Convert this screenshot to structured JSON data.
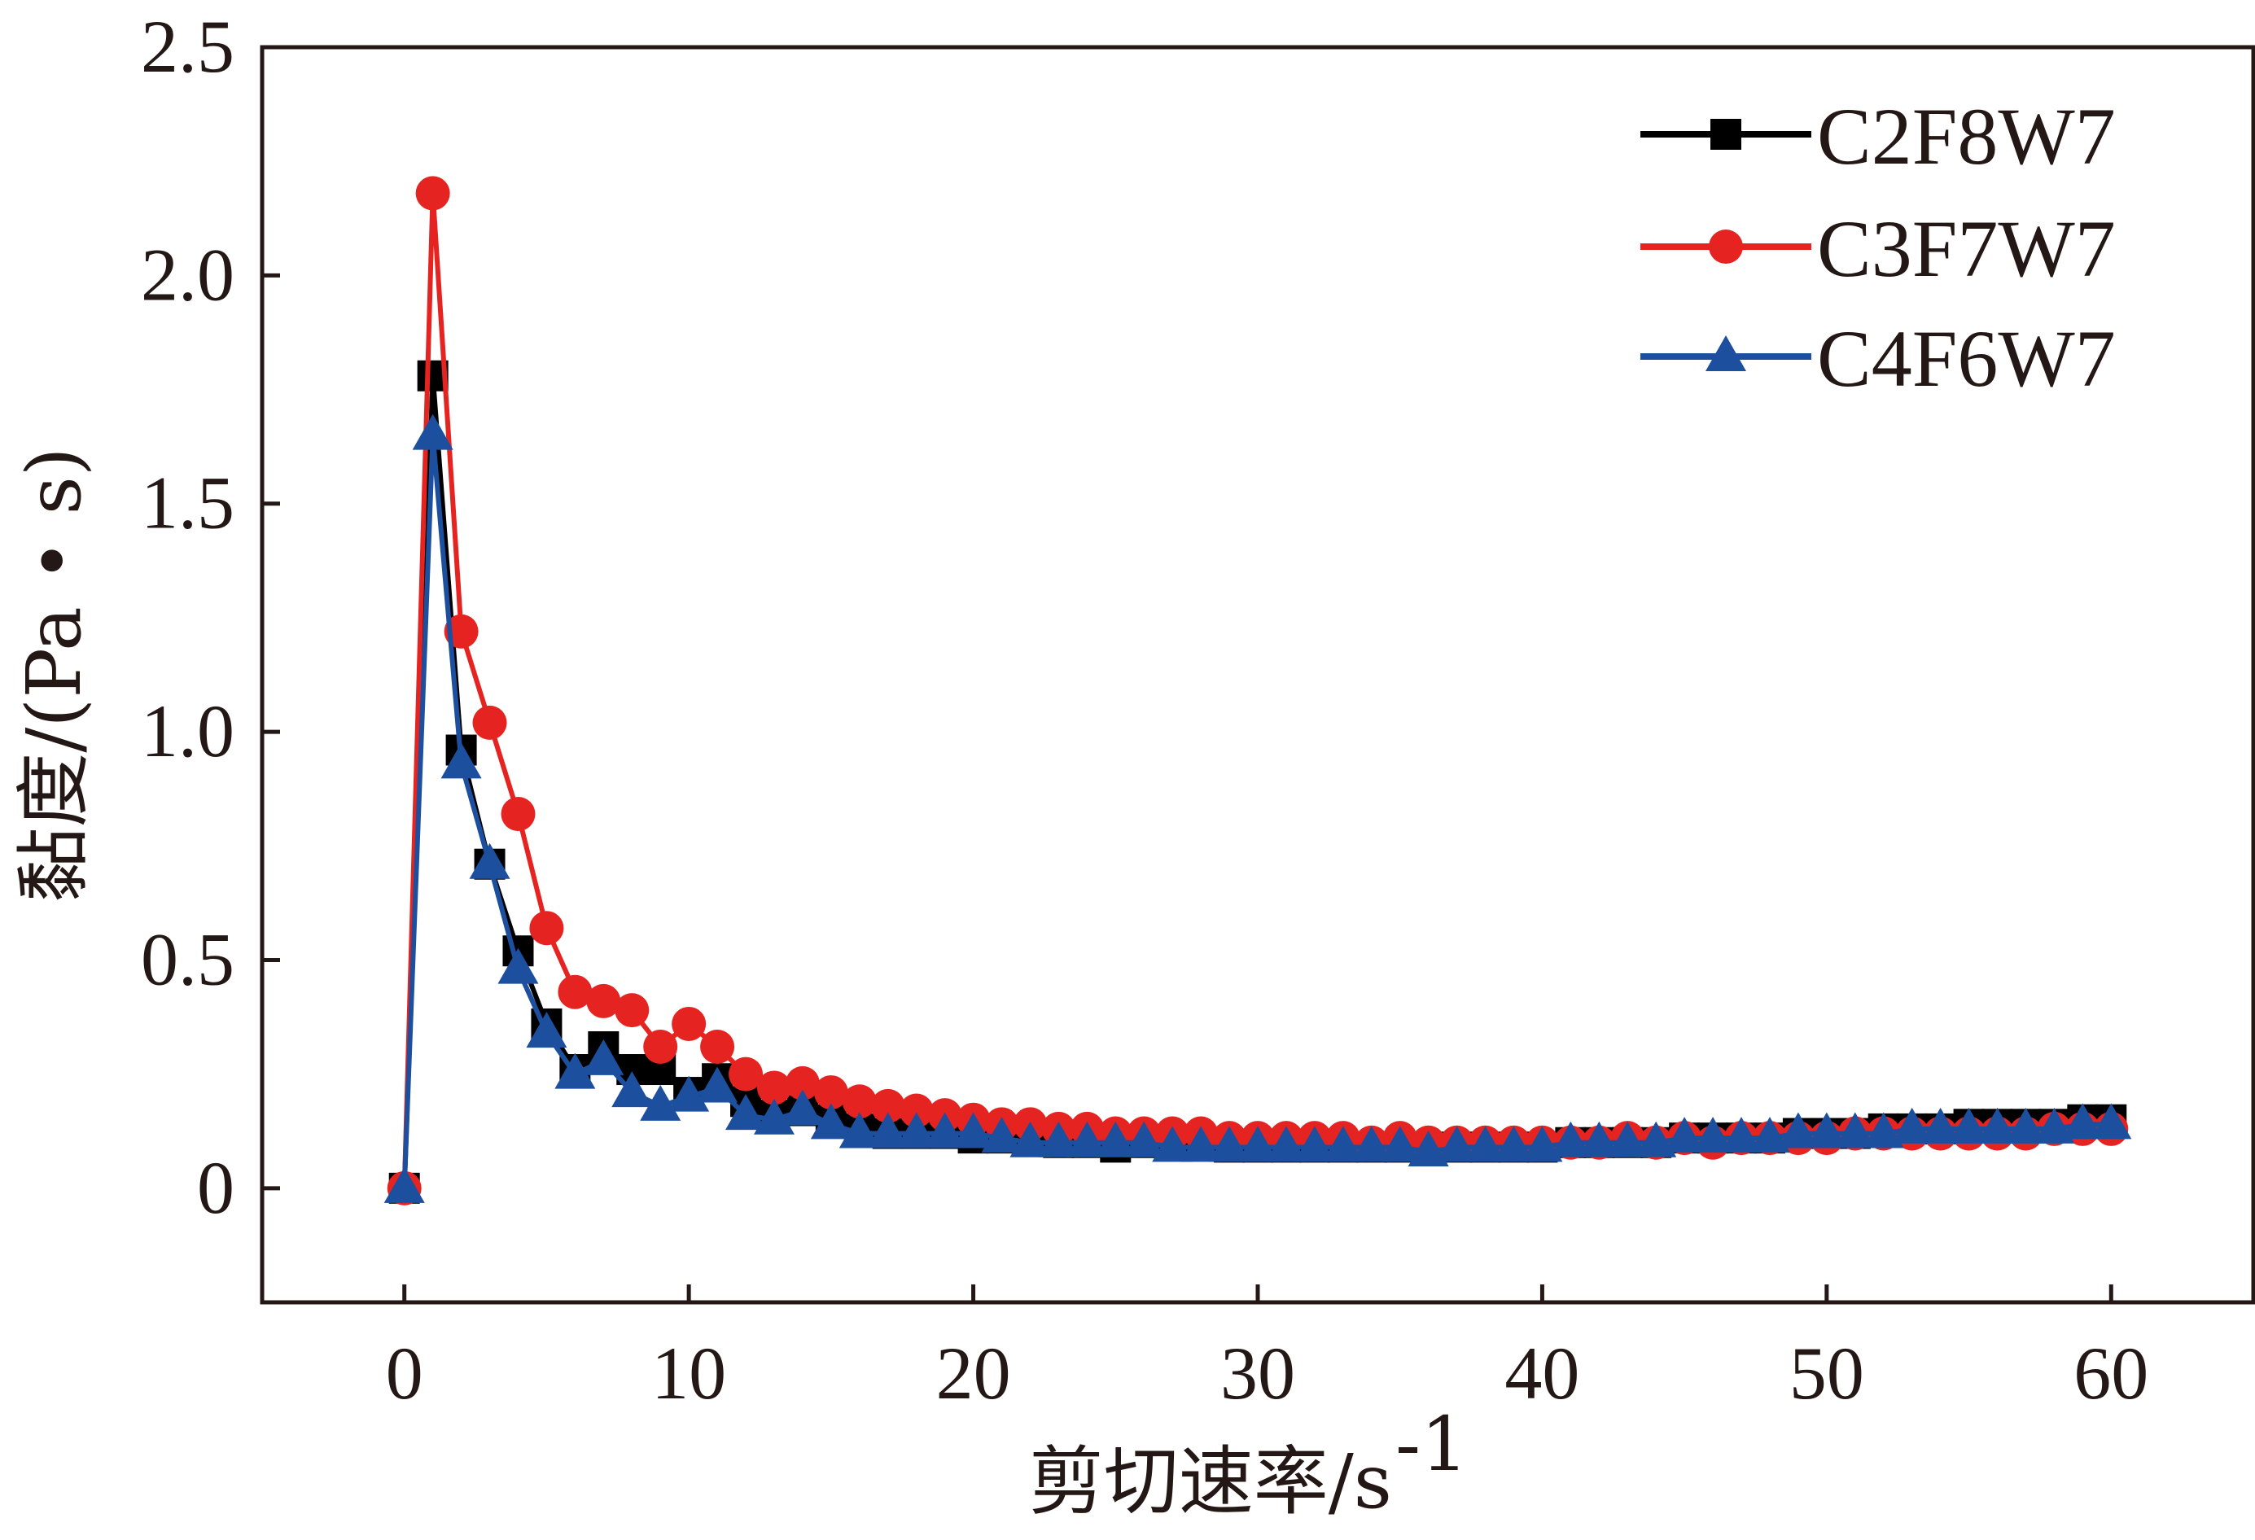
{
  "chart_data": {
    "type": "line",
    "xlabel": "剪切速率/s",
    "xlabel_sup": "-1",
    "ylabel": "黏度/(Pa • s)",
    "xlim": [
      -5,
      65
    ],
    "ylim": [
      -0.25,
      2.5
    ],
    "xticks": [
      0,
      10,
      20,
      30,
      40,
      50,
      60
    ],
    "xtick_labels": [
      "0",
      "10",
      "20",
      "30",
      "40",
      "50",
      "60"
    ],
    "yticks": [
      0,
      0.5,
      1.0,
      1.5,
      2.0,
      2.5
    ],
    "ytick_labels": [
      "0",
      "0.5",
      "1.0",
      "1.5",
      "2.0",
      "2.5"
    ],
    "grid": false,
    "legend_position": "top-right",
    "x": [
      0,
      1,
      2,
      3,
      4,
      5,
      6,
      7,
      8,
      9,
      10,
      11,
      12,
      13,
      14,
      15,
      16,
      17,
      18,
      19,
      20,
      21,
      22,
      23,
      24,
      25,
      26,
      27,
      28,
      29,
      30,
      31,
      32,
      33,
      34,
      35,
      36,
      37,
      38,
      39,
      40,
      41,
      42,
      43,
      44,
      45,
      46,
      47,
      48,
      49,
      50,
      51,
      52,
      53,
      54,
      55,
      56,
      57,
      58,
      59,
      60
    ],
    "series": [
      {
        "name": "C2F8W7",
        "color": "#000000",
        "marker": "square",
        "values": [
          0,
          1.78,
          0.96,
          0.71,
          0.52,
          0.36,
          0.26,
          0.31,
          0.26,
          0.26,
          0.21,
          0.24,
          0.19,
          0.16,
          0.17,
          0.15,
          0.13,
          0.12,
          0.12,
          0.12,
          0.11,
          0.11,
          0.11,
          0.1,
          0.1,
          0.09,
          0.1,
          0.1,
          0.1,
          0.09,
          0.09,
          0.09,
          0.09,
          0.09,
          0.09,
          0.09,
          0.09,
          0.09,
          0.09,
          0.09,
          0.09,
          0.1,
          0.1,
          0.1,
          0.1,
          0.11,
          0.11,
          0.11,
          0.11,
          0.12,
          0.12,
          0.12,
          0.13,
          0.13,
          0.13,
          0.14,
          0.14,
          0.14,
          0.14,
          0.15,
          0.15
        ]
      },
      {
        "name": "C3F7W7",
        "color": "#e52421",
        "marker": "circle",
        "values": [
          0,
          2.18,
          1.22,
          1.02,
          0.82,
          0.57,
          0.43,
          0.41,
          0.39,
          0.31,
          0.36,
          0.31,
          0.25,
          0.22,
          0.23,
          0.21,
          0.19,
          0.18,
          0.17,
          0.16,
          0.15,
          0.14,
          0.14,
          0.13,
          0.13,
          0.12,
          0.12,
          0.12,
          0.12,
          0.11,
          0.11,
          0.11,
          0.11,
          0.11,
          0.1,
          0.11,
          0.1,
          0.1,
          0.1,
          0.1,
          0.1,
          0.1,
          0.1,
          0.11,
          0.1,
          0.11,
          0.1,
          0.11,
          0.11,
          0.11,
          0.11,
          0.12,
          0.12,
          0.12,
          0.12,
          0.12,
          0.12,
          0.12,
          0.13,
          0.13,
          0.13
        ]
      },
      {
        "name": "C4F6W7",
        "color": "#1d4f9f",
        "marker": "triangle",
        "values": [
          0,
          1.65,
          0.93,
          0.71,
          0.48,
          0.34,
          0.25,
          0.28,
          0.21,
          0.18,
          0.2,
          0.22,
          0.16,
          0.15,
          0.17,
          0.14,
          0.12,
          0.12,
          0.12,
          0.12,
          0.12,
          0.11,
          0.1,
          0.1,
          0.1,
          0.1,
          0.1,
          0.09,
          0.09,
          0.09,
          0.09,
          0.09,
          0.09,
          0.09,
          0.09,
          0.09,
          0.08,
          0.09,
          0.09,
          0.09,
          0.09,
          0.1,
          0.1,
          0.1,
          0.1,
          0.11,
          0.11,
          0.11,
          0.11,
          0.12,
          0.12,
          0.12,
          0.12,
          0.13,
          0.13,
          0.13,
          0.13,
          0.13,
          0.13,
          0.14,
          0.14
        ]
      }
    ]
  }
}
